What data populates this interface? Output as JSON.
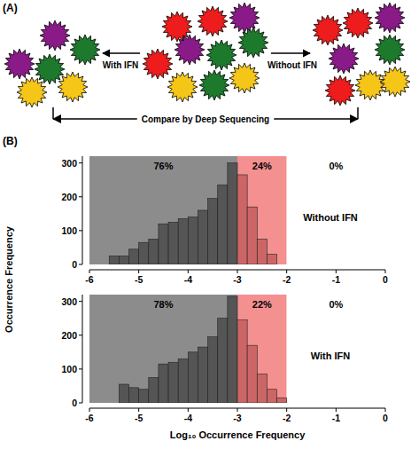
{
  "panel_a": {
    "label": "(A)",
    "left_text": "With IFN",
    "right_text": "Without IFN",
    "bottom_text": "Compare by Deep Sequencing"
  },
  "panel_b": {
    "label": "(B)"
  },
  "chart_data": [
    {
      "type": "histogram",
      "title": "Without IFN",
      "y_label": "Occurrence Frequency",
      "bins": [
        -5.6,
        -5.4,
        -5.2,
        -5,
        -4.8,
        -4.6,
        -4.4,
        -4.2,
        -4,
        -3.8,
        -3.6,
        -3.4,
        -3.2,
        -3,
        -2.8,
        -2.6,
        -2.4,
        -2.2,
        -2
      ],
      "values": [
        25,
        25,
        45,
        65,
        75,
        120,
        125,
        135,
        140,
        160,
        195,
        235,
        300,
        265,
        170,
        75,
        30,
        0
      ],
      "colors": [
        "#555555",
        "#555555",
        "#555555",
        "#555555",
        "#555555",
        "#555555",
        "#555555",
        "#555555",
        "#555555",
        "#555555",
        "#555555",
        "#555555",
        "#555555",
        "#cc6666",
        "#cc6666",
        "#cc6666",
        "#cc6666",
        "#cc6666"
      ],
      "regions": [
        {
          "from": -6,
          "to": -3,
          "label": "76%",
          "value": 76,
          "color": "#8c8c8c"
        },
        {
          "from": -3,
          "to": -2,
          "label": "24%",
          "value": 24,
          "color": "#f49090"
        },
        {
          "from": -2,
          "to": 0,
          "label": "0%",
          "value": 0,
          "color": "#ffffff"
        }
      ],
      "xlim": [
        -6,
        0
      ],
      "xticks": [
        -6,
        -5,
        -4,
        -3,
        -2,
        -1,
        0
      ],
      "ylim": [
        0,
        320
      ],
      "yticks": [
        0,
        100,
        200,
        300
      ],
      "grid": false
    },
    {
      "type": "histogram",
      "title": "With IFN",
      "x_label": "Log₁₀ Occurrence Frequency",
      "bins": [
        -5.6,
        -5.4,
        -5.2,
        -5,
        -4.8,
        -4.6,
        -4.4,
        -4.2,
        -4,
        -3.8,
        -3.6,
        -3.4,
        -3.2,
        -3,
        -2.8,
        -2.6,
        -2.4,
        -2.2,
        -2
      ],
      "values": [
        0,
        55,
        45,
        40,
        75,
        115,
        120,
        130,
        150,
        165,
        195,
        250,
        315,
        245,
        170,
        85,
        40,
        15
      ],
      "colors": [
        "#555555",
        "#555555",
        "#555555",
        "#555555",
        "#555555",
        "#555555",
        "#555555",
        "#555555",
        "#555555",
        "#555555",
        "#555555",
        "#555555",
        "#555555",
        "#cc6666",
        "#cc6666",
        "#cc6666",
        "#cc6666",
        "#cc6666"
      ],
      "regions": [
        {
          "from": -6,
          "to": -3,
          "label": "78%",
          "value": 78,
          "color": "#8c8c8c"
        },
        {
          "from": -3,
          "to": -2,
          "label": "22%",
          "value": 22,
          "color": "#f49090"
        },
        {
          "from": -2,
          "to": 0,
          "label": "0%",
          "value": 0,
          "color": "#ffffff"
        }
      ],
      "xlim": [
        -6,
        0
      ],
      "xticks": [
        -6,
        -5,
        -4,
        -3,
        -2,
        -1,
        0
      ],
      "ylim": [
        0,
        320
      ],
      "yticks": [
        0,
        100,
        200,
        300
      ],
      "grid": false
    }
  ]
}
